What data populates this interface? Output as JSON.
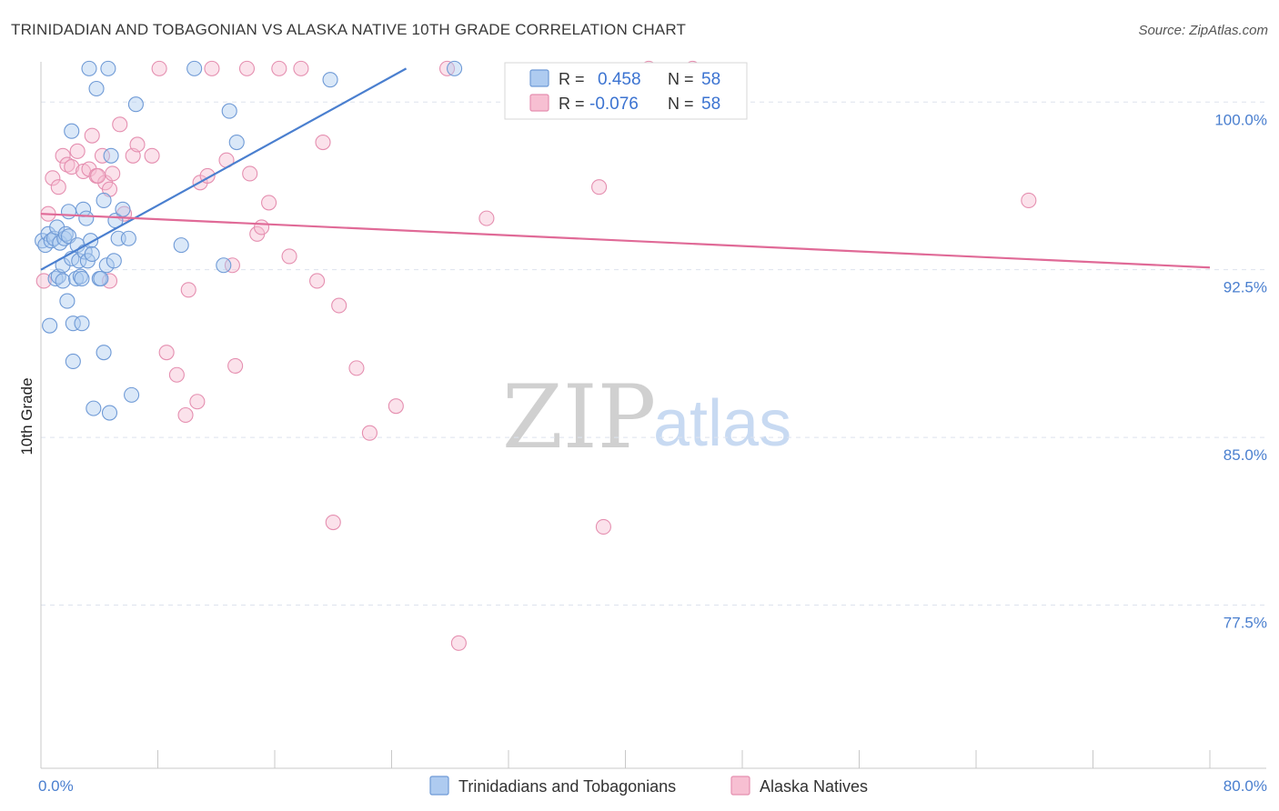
{
  "title": "TRINIDADIAN AND TOBAGONIAN VS ALASKA NATIVE 10TH GRADE CORRELATION CHART",
  "source": "Source: ZipAtlas.com",
  "watermark": {
    "zip": "ZIP",
    "atlas": "atlas"
  },
  "colors": {
    "blue": "#4a7fcf",
    "blue_fill": "#aecbf0",
    "pink": "#e06a97",
    "pink_fill": "#f7bfd2",
    "grid": "#dde3ee"
  },
  "legend": {
    "r_label": "R =",
    "n_label": "N =",
    "rows": [
      {
        "r": "0.458",
        "n": "58"
      },
      {
        "r": "-0.076",
        "n": "58"
      }
    ]
  },
  "bottom_legend": [
    "Trinidadians and Tobagonians",
    "Alaska Natives"
  ],
  "chart_data": {
    "type": "scatter",
    "title": "TRINIDADIAN AND TOBAGONIAN VS ALASKA NATIVE 10TH GRADE CORRELATION CHART",
    "xlabel": "",
    "ylabel": "10th Grade",
    "xlim": [
      0,
      80
    ],
    "ylim": [
      70.2,
      101.8
    ],
    "x_tick_labels": [
      "0.0%",
      "80.0%"
    ],
    "y_ticks": [
      77.5,
      85.0,
      92.5,
      100.0
    ],
    "y_tick_labels": [
      "77.5%",
      "85.0%",
      "92.5%",
      "100.0%"
    ],
    "series": [
      {
        "name": "Trinidadians and Tobagonians",
        "color": "#4a7fcf",
        "trend": {
          "x0": 0.0,
          "y0": 92.5,
          "x1": 25.0,
          "y1": 101.5
        },
        "points": [
          [
            0.1,
            93.8
          ],
          [
            0.3,
            93.6
          ],
          [
            0.5,
            94.1
          ],
          [
            0.7,
            93.8
          ],
          [
            0.9,
            93.9
          ],
          [
            1.0,
            92.1
          ],
          [
            1.1,
            94.4
          ],
          [
            1.2,
            92.2
          ],
          [
            1.3,
            93.7
          ],
          [
            1.5,
            92.7
          ],
          [
            1.5,
            92.0
          ],
          [
            1.6,
            93.9
          ],
          [
            1.7,
            94.1
          ],
          [
            1.8,
            91.1
          ],
          [
            1.9,
            95.1
          ],
          [
            1.9,
            94.0
          ],
          [
            2.1,
            93.0
          ],
          [
            2.2,
            90.1
          ],
          [
            2.2,
            88.4
          ],
          [
            2.4,
            92.1
          ],
          [
            2.5,
            93.6
          ],
          [
            2.6,
            92.9
          ],
          [
            2.7,
            92.2
          ],
          [
            2.8,
            90.1
          ],
          [
            2.8,
            92.1
          ],
          [
            2.9,
            95.2
          ],
          [
            3.0,
            93.3
          ],
          [
            3.1,
            94.8
          ],
          [
            3.2,
            92.9
          ],
          [
            3.3,
            101.5
          ],
          [
            3.4,
            93.8
          ],
          [
            3.5,
            93.2
          ],
          [
            3.6,
            86.3
          ],
          [
            3.8,
            100.6
          ],
          [
            4.0,
            92.1
          ],
          [
            4.1,
            92.1
          ],
          [
            4.3,
            95.6
          ],
          [
            4.3,
            88.8
          ],
          [
            4.5,
            92.7
          ],
          [
            4.6,
            101.5
          ],
          [
            4.7,
            86.1
          ],
          [
            4.8,
            97.6
          ],
          [
            5.0,
            92.9
          ],
          [
            5.3,
            93.9
          ],
          [
            5.1,
            94.7
          ],
          [
            5.6,
            95.2
          ],
          [
            6.2,
            86.9
          ],
          [
            6.0,
            93.9
          ],
          [
            6.5,
            99.9
          ],
          [
            9.6,
            93.6
          ],
          [
            10.5,
            101.5
          ],
          [
            12.5,
            92.7
          ],
          [
            12.9,
            99.6
          ],
          [
            13.4,
            98.2
          ],
          [
            19.8,
            101.0
          ],
          [
            28.3,
            101.5
          ],
          [
            0.6,
            90.0
          ],
          [
            2.1,
            98.7
          ]
        ]
      },
      {
        "name": "Alaska Natives",
        "color": "#e06a97",
        "trend": {
          "x0": 0.0,
          "y0": 95.0,
          "x1": 80.0,
          "y1": 92.6
        },
        "points": [
          [
            0.2,
            92.0
          ],
          [
            0.5,
            95.0
          ],
          [
            0.8,
            96.6
          ],
          [
            1.2,
            96.2
          ],
          [
            1.5,
            97.6
          ],
          [
            1.8,
            97.2
          ],
          [
            2.1,
            97.1
          ],
          [
            2.5,
            97.8
          ],
          [
            2.9,
            96.9
          ],
          [
            3.3,
            97.0
          ],
          [
            3.5,
            98.5
          ],
          [
            3.8,
            96.7
          ],
          [
            4.2,
            97.6
          ],
          [
            4.4,
            96.4
          ],
          [
            4.7,
            96.1
          ],
          [
            4.9,
            96.8
          ],
          [
            5.4,
            99.0
          ],
          [
            5.7,
            95.0
          ],
          [
            6.3,
            97.6
          ],
          [
            6.6,
            98.1
          ],
          [
            7.6,
            97.6
          ],
          [
            8.1,
            101.5
          ],
          [
            8.6,
            88.8
          ],
          [
            9.3,
            87.8
          ],
          [
            9.9,
            86.0
          ],
          [
            10.1,
            91.6
          ],
          [
            10.7,
            86.6
          ],
          [
            10.9,
            96.4
          ],
          [
            11.4,
            96.7
          ],
          [
            11.7,
            101.5
          ],
          [
            12.7,
            97.4
          ],
          [
            13.1,
            92.7
          ],
          [
            13.3,
            88.2
          ],
          [
            14.1,
            101.5
          ],
          [
            14.3,
            96.8
          ],
          [
            14.8,
            94.1
          ],
          [
            15.1,
            94.4
          ],
          [
            15.6,
            95.5
          ],
          [
            16.3,
            101.5
          ],
          [
            17.0,
            93.1
          ],
          [
            17.8,
            101.5
          ],
          [
            18.9,
            92.0
          ],
          [
            19.3,
            98.2
          ],
          [
            20.0,
            81.2
          ],
          [
            20.4,
            90.9
          ],
          [
            21.6,
            88.1
          ],
          [
            22.5,
            85.2
          ],
          [
            24.3,
            86.4
          ],
          [
            27.8,
            101.5
          ],
          [
            28.6,
            75.8
          ],
          [
            30.5,
            94.8
          ],
          [
            38.2,
            96.2
          ],
          [
            38.5,
            81.0
          ],
          [
            41.6,
            101.5
          ],
          [
            44.6,
            101.5
          ],
          [
            67.6,
            95.6
          ],
          [
            3.9,
            96.7
          ],
          [
            4.7,
            92.0
          ]
        ]
      }
    ]
  }
}
